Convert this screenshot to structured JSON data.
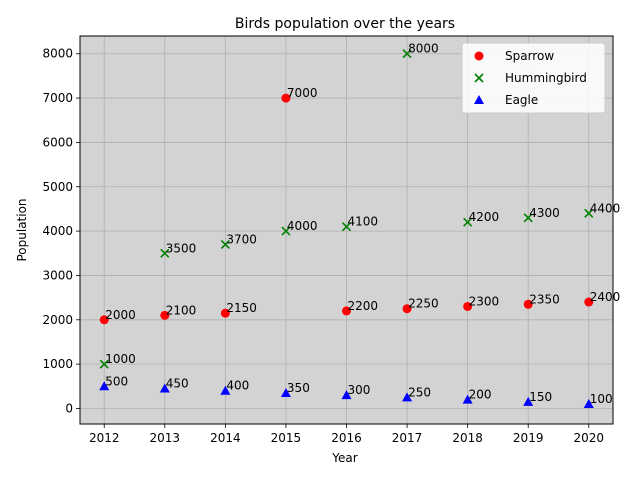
{
  "chart_data": {
    "type": "scatter",
    "title": "Birds population over the years",
    "xlabel": "Year",
    "ylabel": "Population",
    "x": [
      2012,
      2013,
      2014,
      2015,
      2016,
      2017,
      2018,
      2019,
      2020
    ],
    "xlim": [
      2011.6,
      2020.4
    ],
    "ylim": [
      -350,
      8400
    ],
    "yticks": [
      0,
      1000,
      2000,
      3000,
      4000,
      5000,
      6000,
      7000,
      8000
    ],
    "grid": true,
    "legend_position": "top-right",
    "background": "#d3d3d3",
    "series": [
      {
        "name": "Sparrow",
        "marker": "circle",
        "color": "#ff0000",
        "values": [
          2000,
          2100,
          2150,
          7000,
          2200,
          2250,
          2300,
          2350,
          2400
        ]
      },
      {
        "name": "Hummingbird",
        "marker": "x",
        "color": "#008000",
        "values": [
          1000,
          3500,
          3700,
          4000,
          4100,
          8000,
          4200,
          4300,
          4400
        ]
      },
      {
        "name": "Eagle",
        "marker": "triangle",
        "color": "#0000ff",
        "values": [
          500,
          450,
          400,
          350,
          300,
          250,
          200,
          150,
          100
        ]
      }
    ]
  }
}
